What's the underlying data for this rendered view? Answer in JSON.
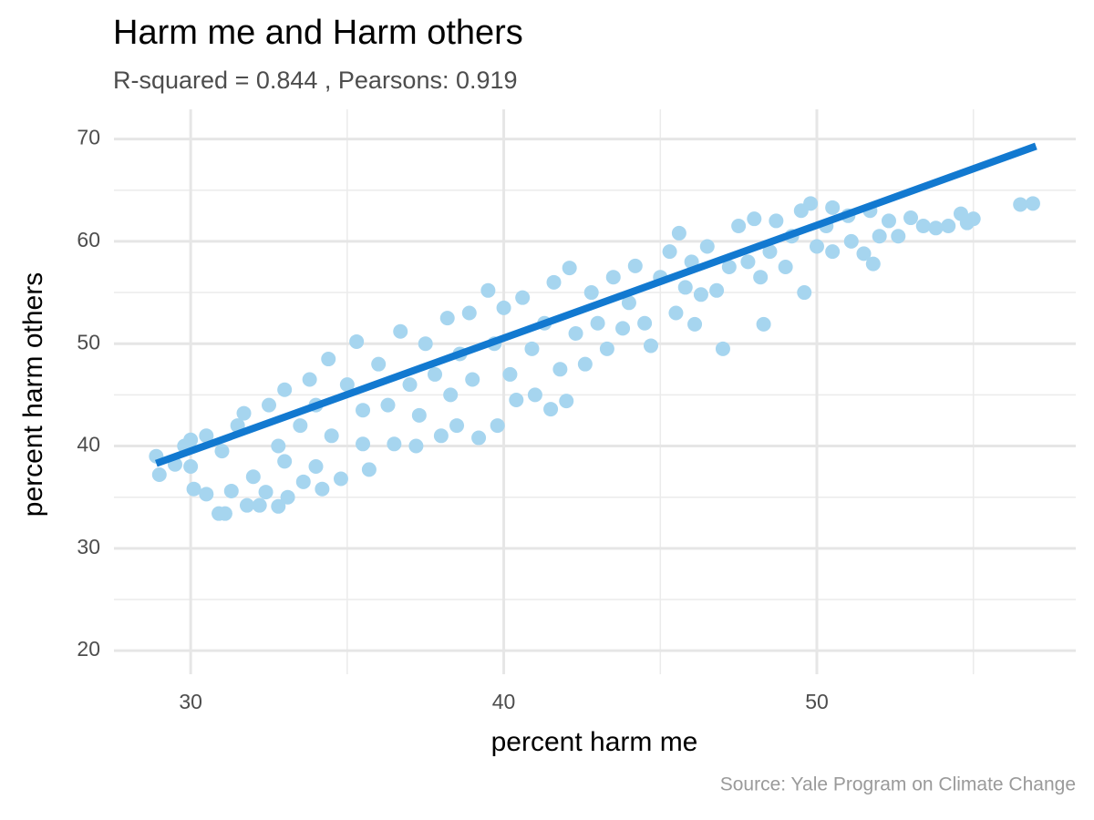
{
  "chart_data": {
    "type": "scatter",
    "title": "Harm me and Harm others",
    "subtitle": "R-squared =  0.844 , Pearsons: 0.919",
    "x_label": "percent harm me",
    "y_label": "percent harm others",
    "caption": "Source: Yale Program on Climate Change",
    "xlim": [
      27.55,
      58.27
    ],
    "ylim": [
      17.7,
      72.9
    ],
    "xticks": [
      30,
      40,
      50
    ],
    "yticks": [
      20,
      30,
      40,
      50,
      60,
      70
    ],
    "minor_xticks": [
      35,
      45,
      55
    ],
    "minor_yticks": [
      25,
      35,
      45,
      55,
      65
    ],
    "grid": true,
    "color": "#a6d5ef",
    "x": [
      28.9,
      29.0,
      29.5,
      29.8,
      30.0,
      30.0,
      30.1,
      30.5,
      30.5,
      30.9,
      31.1,
      31.0,
      31.3,
      31.5,
      31.7,
      31.8,
      32.0,
      32.2,
      32.4,
      32.5,
      32.8,
      32.8,
      33.0,
      33.0,
      33.1,
      33.5,
      33.6,
      33.8,
      34.0,
      34.0,
      34.2,
      34.4,
      34.5,
      34.8,
      35.0,
      35.3,
      35.5,
      35.7,
      35.5,
      36.0,
      36.3,
      36.5,
      36.7,
      37.0,
      37.2,
      37.3,
      37.5,
      37.8,
      38.0,
      38.2,
      38.3,
      38.5,
      38.6,
      38.9,
      39.0,
      39.2,
      39.5,
      39.7,
      39.8,
      40.0,
      40.2,
      40.4,
      40.6,
      40.9,
      41.0,
      41.3,
      41.5,
      41.6,
      41.8,
      42.0,
      42.1,
      42.3,
      42.6,
      42.8,
      43.0,
      43.3,
      43.5,
      43.8,
      44.0,
      44.2,
      44.5,
      44.7,
      45.0,
      45.3,
      45.5,
      45.6,
      45.8,
      46.0,
      46.1,
      46.3,
      46.5,
      46.8,
      47.0,
      47.2,
      47.5,
      47.8,
      48.0,
      48.2,
      48.3,
      48.5,
      48.7,
      49.0,
      49.2,
      49.5,
      49.6,
      49.8,
      50.0,
      50.3,
      50.5,
      50.5,
      51.0,
      51.1,
      51.5,
      51.7,
      51.8,
      52.0,
      52.3,
      52.6,
      53.0,
      53.4,
      53.8,
      54.2,
      54.6,
      54.8,
      55.0,
      56.5,
      56.9
    ],
    "values": [
      39.0,
      37.2,
      38.2,
      40.0,
      40.6,
      38.0,
      35.8,
      35.3,
      41.0,
      33.4,
      33.4,
      39.5,
      35.6,
      42.0,
      43.2,
      34.2,
      37.0,
      34.2,
      35.5,
      44.0,
      40.0,
      34.1,
      45.5,
      38.5,
      35.0,
      42.0,
      36.5,
      46.5,
      44.0,
      38.0,
      35.8,
      48.5,
      41.0,
      36.8,
      46.0,
      50.2,
      43.5,
      37.7,
      40.2,
      48.0,
      44.0,
      40.2,
      51.2,
      46.0,
      40.0,
      43.0,
      50.0,
      47.0,
      41.0,
      52.5,
      45.0,
      42.0,
      49.0,
      53.0,
      46.5,
      40.8,
      55.2,
      50.0,
      42.0,
      53.5,
      47.0,
      44.5,
      54.5,
      49.5,
      45.0,
      52.0,
      43.6,
      56.0,
      47.5,
      44.4,
      57.4,
      51.0,
      48.0,
      55.0,
      52.0,
      49.5,
      56.5,
      51.5,
      54.0,
      57.6,
      52.0,
      49.8,
      56.5,
      59.0,
      53.0,
      60.8,
      55.5,
      58.0,
      51.9,
      54.8,
      59.5,
      55.2,
      49.5,
      57.5,
      61.5,
      58.0,
      62.2,
      56.5,
      51.9,
      59.0,
      62.0,
      57.5,
      60.5,
      63.0,
      55.0,
      63.7,
      59.5,
      61.5,
      63.3,
      59.0,
      62.5,
      60.0,
      58.8,
      63.0,
      57.8,
      60.5,
      62.0,
      60.5,
      62.3,
      61.5,
      61.3,
      61.5,
      62.7,
      61.8,
      62.2,
      63.6,
      63.7
    ],
    "trend_line": {
      "x": [
        28.9,
        57.0
      ],
      "y": [
        38.3,
        69.3
      ],
      "color": "#1279d0"
    }
  }
}
